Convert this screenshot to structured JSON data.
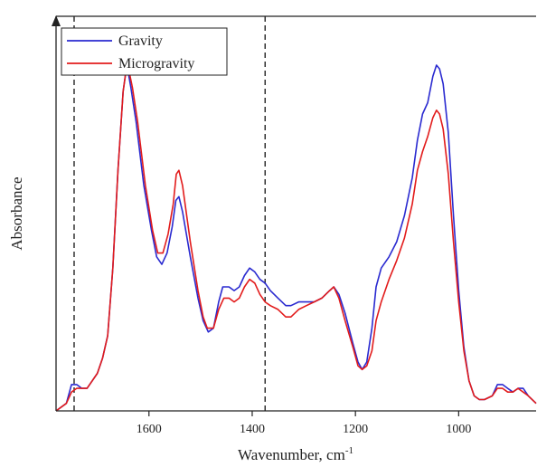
{
  "chart_data": {
    "type": "line",
    "title": "",
    "xlabel": "Wavenumber, cm",
    "xlabel_superscript": "-1",
    "ylabel": "Absorbance",
    "xlim": [
      1780,
      850
    ],
    "ylim": [
      0,
      1.05
    ],
    "x_reversed": true,
    "y_ticks_shown": false,
    "grid": false,
    "legend_position": "top-left",
    "x_ticks": [
      1600,
      1400,
      1200,
      1000
    ],
    "reference_lines_x": [
      1745,
      1375
    ],
    "series": [
      {
        "name": "Gravity",
        "color": "#2a2ad0",
        "points": [
          [
            1780,
            0.0
          ],
          [
            1760,
            0.02
          ],
          [
            1750,
            0.07
          ],
          [
            1740,
            0.07
          ],
          [
            1730,
            0.06
          ],
          [
            1720,
            0.06
          ],
          [
            1710,
            0.08
          ],
          [
            1700,
            0.1
          ],
          [
            1690,
            0.14
          ],
          [
            1680,
            0.2
          ],
          [
            1670,
            0.38
          ],
          [
            1660,
            0.64
          ],
          [
            1650,
            0.85
          ],
          [
            1645,
            0.9
          ],
          [
            1640,
            0.9
          ],
          [
            1635,
            0.86
          ],
          [
            1625,
            0.77
          ],
          [
            1610,
            0.6
          ],
          [
            1595,
            0.48
          ],
          [
            1585,
            0.41
          ],
          [
            1575,
            0.39
          ],
          [
            1565,
            0.42
          ],
          [
            1555,
            0.49
          ],
          [
            1548,
            0.56
          ],
          [
            1542,
            0.57
          ],
          [
            1535,
            0.53
          ],
          [
            1520,
            0.41
          ],
          [
            1505,
            0.3
          ],
          [
            1495,
            0.24
          ],
          [
            1485,
            0.21
          ],
          [
            1475,
            0.22
          ],
          [
            1465,
            0.29
          ],
          [
            1457,
            0.33
          ],
          [
            1445,
            0.33
          ],
          [
            1435,
            0.32
          ],
          [
            1425,
            0.33
          ],
          [
            1415,
            0.36
          ],
          [
            1405,
            0.38
          ],
          [
            1395,
            0.37
          ],
          [
            1385,
            0.35
          ],
          [
            1375,
            0.34
          ],
          [
            1365,
            0.32
          ],
          [
            1350,
            0.3
          ],
          [
            1335,
            0.28
          ],
          [
            1325,
            0.28
          ],
          [
            1310,
            0.29
          ],
          [
            1295,
            0.29
          ],
          [
            1280,
            0.29
          ],
          [
            1265,
            0.3
          ],
          [
            1250,
            0.32
          ],
          [
            1242,
            0.33
          ],
          [
            1232,
            0.31
          ],
          [
            1220,
            0.26
          ],
          [
            1205,
            0.18
          ],
          [
            1195,
            0.13
          ],
          [
            1187,
            0.11
          ],
          [
            1178,
            0.13
          ],
          [
            1168,
            0.22
          ],
          [
            1160,
            0.33
          ],
          [
            1150,
            0.38
          ],
          [
            1135,
            0.41
          ],
          [
            1120,
            0.45
          ],
          [
            1105,
            0.52
          ],
          [
            1090,
            0.62
          ],
          [
            1080,
            0.72
          ],
          [
            1070,
            0.79
          ],
          [
            1060,
            0.82
          ],
          [
            1050,
            0.89
          ],
          [
            1043,
            0.92
          ],
          [
            1037,
            0.91
          ],
          [
            1030,
            0.87
          ],
          [
            1020,
            0.74
          ],
          [
            1010,
            0.52
          ],
          [
            1000,
            0.32
          ],
          [
            990,
            0.17
          ],
          [
            980,
            0.08
          ],
          [
            970,
            0.04
          ],
          [
            960,
            0.03
          ],
          [
            950,
            0.03
          ],
          [
            935,
            0.04
          ],
          [
            925,
            0.07
          ],
          [
            915,
            0.07
          ],
          [
            905,
            0.06
          ],
          [
            895,
            0.05
          ],
          [
            885,
            0.06
          ],
          [
            875,
            0.06
          ],
          [
            865,
            0.04
          ],
          [
            850,
            0.02
          ]
        ]
      },
      {
        "name": "Microgravity",
        "color": "#e21b1b",
        "points": [
          [
            1780,
            0.0
          ],
          [
            1760,
            0.02
          ],
          [
            1750,
            0.05
          ],
          [
            1740,
            0.06
          ],
          [
            1730,
            0.06
          ],
          [
            1720,
            0.06
          ],
          [
            1710,
            0.08
          ],
          [
            1700,
            0.1
          ],
          [
            1690,
            0.14
          ],
          [
            1680,
            0.2
          ],
          [
            1670,
            0.38
          ],
          [
            1660,
            0.64
          ],
          [
            1650,
            0.85
          ],
          [
            1645,
            0.9
          ],
          [
            1638,
            0.9
          ],
          [
            1632,
            0.86
          ],
          [
            1622,
            0.77
          ],
          [
            1607,
            0.6
          ],
          [
            1593,
            0.48
          ],
          [
            1583,
            0.42
          ],
          [
            1573,
            0.42
          ],
          [
            1563,
            0.47
          ],
          [
            1553,
            0.55
          ],
          [
            1547,
            0.63
          ],
          [
            1542,
            0.64
          ],
          [
            1535,
            0.6
          ],
          [
            1520,
            0.45
          ],
          [
            1505,
            0.32
          ],
          [
            1495,
            0.25
          ],
          [
            1487,
            0.22
          ],
          [
            1475,
            0.22
          ],
          [
            1465,
            0.27
          ],
          [
            1455,
            0.3
          ],
          [
            1445,
            0.3
          ],
          [
            1435,
            0.29
          ],
          [
            1425,
            0.3
          ],
          [
            1415,
            0.33
          ],
          [
            1405,
            0.35
          ],
          [
            1395,
            0.34
          ],
          [
            1385,
            0.31
          ],
          [
            1375,
            0.29
          ],
          [
            1365,
            0.28
          ],
          [
            1350,
            0.27
          ],
          [
            1335,
            0.25
          ],
          [
            1325,
            0.25
          ],
          [
            1310,
            0.27
          ],
          [
            1295,
            0.28
          ],
          [
            1280,
            0.29
          ],
          [
            1265,
            0.3
          ],
          [
            1250,
            0.32
          ],
          [
            1242,
            0.33
          ],
          [
            1232,
            0.3
          ],
          [
            1220,
            0.24
          ],
          [
            1205,
            0.17
          ],
          [
            1195,
            0.12
          ],
          [
            1187,
            0.11
          ],
          [
            1178,
            0.12
          ],
          [
            1168,
            0.16
          ],
          [
            1160,
            0.24
          ],
          [
            1150,
            0.29
          ],
          [
            1135,
            0.35
          ],
          [
            1120,
            0.4
          ],
          [
            1105,
            0.46
          ],
          [
            1090,
            0.55
          ],
          [
            1080,
            0.64
          ],
          [
            1070,
            0.69
          ],
          [
            1060,
            0.73
          ],
          [
            1050,
            0.78
          ],
          [
            1043,
            0.8
          ],
          [
            1037,
            0.79
          ],
          [
            1030,
            0.75
          ],
          [
            1020,
            0.63
          ],
          [
            1010,
            0.45
          ],
          [
            1000,
            0.29
          ],
          [
            990,
            0.16
          ],
          [
            980,
            0.08
          ],
          [
            970,
            0.04
          ],
          [
            960,
            0.03
          ],
          [
            950,
            0.03
          ],
          [
            935,
            0.04
          ],
          [
            925,
            0.06
          ],
          [
            915,
            0.06
          ],
          [
            905,
            0.05
          ],
          [
            895,
            0.05
          ],
          [
            885,
            0.06
          ],
          [
            875,
            0.05
          ],
          [
            865,
            0.04
          ],
          [
            850,
            0.02
          ]
        ]
      }
    ]
  }
}
